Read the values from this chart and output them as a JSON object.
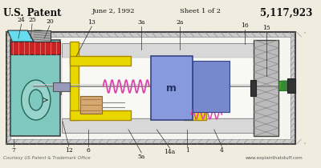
{
  "title_left": "U.S. Patent",
  "title_date": "June 2, 1992",
  "title_sheet": "Sheet 1 of 2",
  "title_patent": "5,117,923",
  "footer_left": "Courtesy US Patent & Trademark Office",
  "footer_right": "www.explainthatstuff.com",
  "bg_color": "#f0ede0",
  "outer_color": "#e0e0e0",
  "teal_color": "#7ec8c0",
  "red_color": "#cc2222",
  "cyan_color": "#66ddee",
  "yellow_color": "#e8d800",
  "tan_color": "#d4a870",
  "blue_mass_color": "#8899dd",
  "blue_piston_color": "#7788cc",
  "pink_spring": "#dd44aa",
  "green_rod": "#55aa33",
  "gray_hatch": "#aaaaaa",
  "purple_cyl": "#9999bb"
}
